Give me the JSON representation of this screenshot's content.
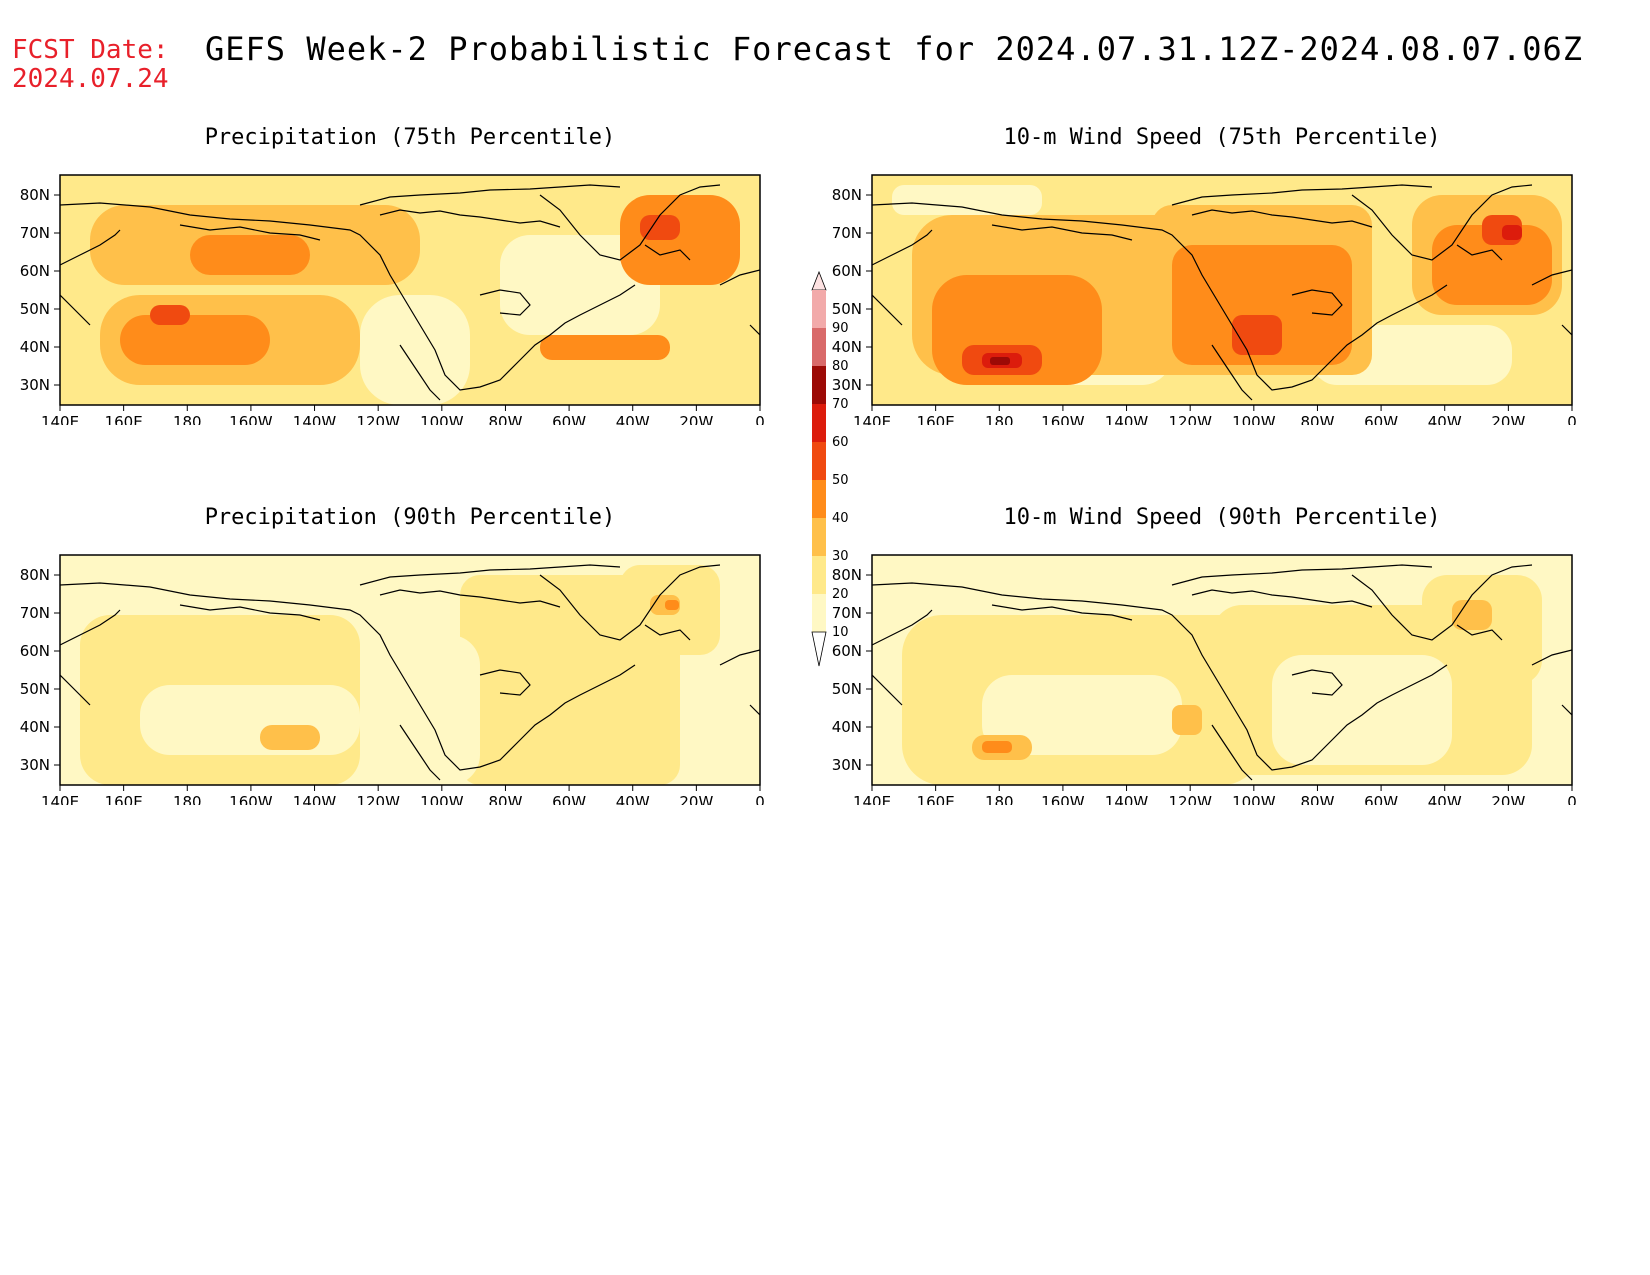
{
  "header": {
    "fcst_label": "FCST Date:",
    "fcst_date": "2024.07.24",
    "title": "GEFS Week-2 Probabilistic Forecast for 2024.07.31.12Z-2024.08.07.06Z"
  },
  "lon_labels": [
    "140E",
    "160E",
    "180",
    "160W",
    "140W",
    "120W",
    "100W",
    "80W",
    "60W",
    "40W",
    "20W",
    "0"
  ],
  "lat_labels": [
    "80N",
    "70N",
    "60N",
    "50N",
    "40N",
    "30N"
  ],
  "colors": {
    "c10": "#fff8c4",
    "c20": "#ffe98a",
    "c30": "#ffc04a",
    "c40": "#ff8c1a",
    "c50": "#f04a10",
    "c60": "#dc1c0c",
    "c70": "#9c0a06",
    "c80": "#d96a6a",
    "c90": "#f2aaaa",
    "c100": "#fde2e2"
  },
  "colorbar": {
    "ticks": [
      "10",
      "20",
      "30",
      "40",
      "50",
      "60",
      "70",
      "80",
      "90"
    ]
  },
  "panels": [
    {
      "id": "precip75",
      "title": "Precipitation (75th Percentile)",
      "level": "high"
    },
    {
      "id": "wind75",
      "title": "10-m Wind Speed (75th Percentile)",
      "level": "veryhigh"
    },
    {
      "id": "precip90",
      "title": "Precipitation (90th Percentile)",
      "level": "low"
    },
    {
      "id": "wind90",
      "title": "10-m Wind Speed (90th Percentile)",
      "level": "lowmed"
    }
  ]
}
